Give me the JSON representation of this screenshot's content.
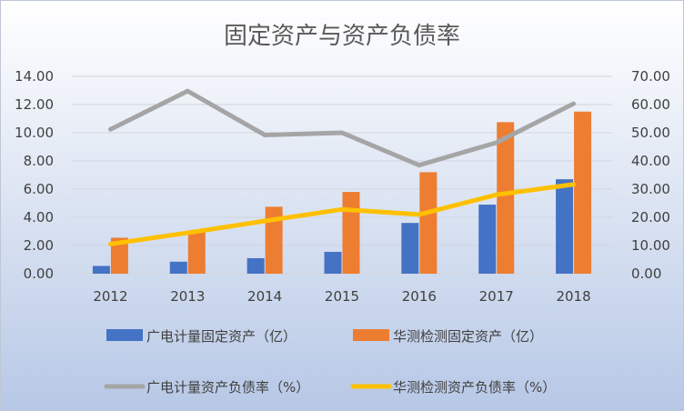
{
  "chart_data": {
    "type": "bar",
    "title": "固定资产与资产负债率",
    "categories": [
      "2012",
      "2013",
      "2014",
      "2015",
      "2016",
      "2017",
      "2018"
    ],
    "y_left": {
      "ticks": [
        "0.00",
        "2.00",
        "4.00",
        "6.00",
        "8.00",
        "10.00",
        "12.00",
        "14.00"
      ],
      "ylim": [
        0,
        14
      ]
    },
    "y_right": {
      "ticks": [
        "0.00",
        "10.00",
        "20.00",
        "30.00",
        "40.00",
        "50.00",
        "60.00",
        "70.00"
      ],
      "ylim": [
        0,
        70
      ]
    },
    "grid": true,
    "legend_position": "bottom",
    "series": [
      {
        "name": "广电计量固定资产（亿）",
        "type": "bar",
        "axis": "left",
        "color": "#4472c4",
        "values": [
          0.55,
          0.85,
          1.1,
          1.55,
          3.6,
          4.9,
          6.7
        ]
      },
      {
        "name": "华测检测固定资产（亿）",
        "type": "bar",
        "axis": "left",
        "color": "#ed7d31",
        "values": [
          2.55,
          2.95,
          4.75,
          5.8,
          7.2,
          10.75,
          11.5
        ]
      },
      {
        "name": "广电计量资产负债率（%）",
        "type": "line",
        "axis": "right",
        "color": "#a5a5a5",
        "values": [
          51.2,
          64.8,
          49.2,
          50.0,
          38.5,
          46.5,
          60.3
        ]
      },
      {
        "name": "华测检测资产负债率（%）",
        "type": "line",
        "axis": "right",
        "color": "#ffc000",
        "values": [
          10.5,
          14.5,
          18.7,
          22.8,
          21.0,
          28.0,
          31.7
        ]
      }
    ]
  }
}
